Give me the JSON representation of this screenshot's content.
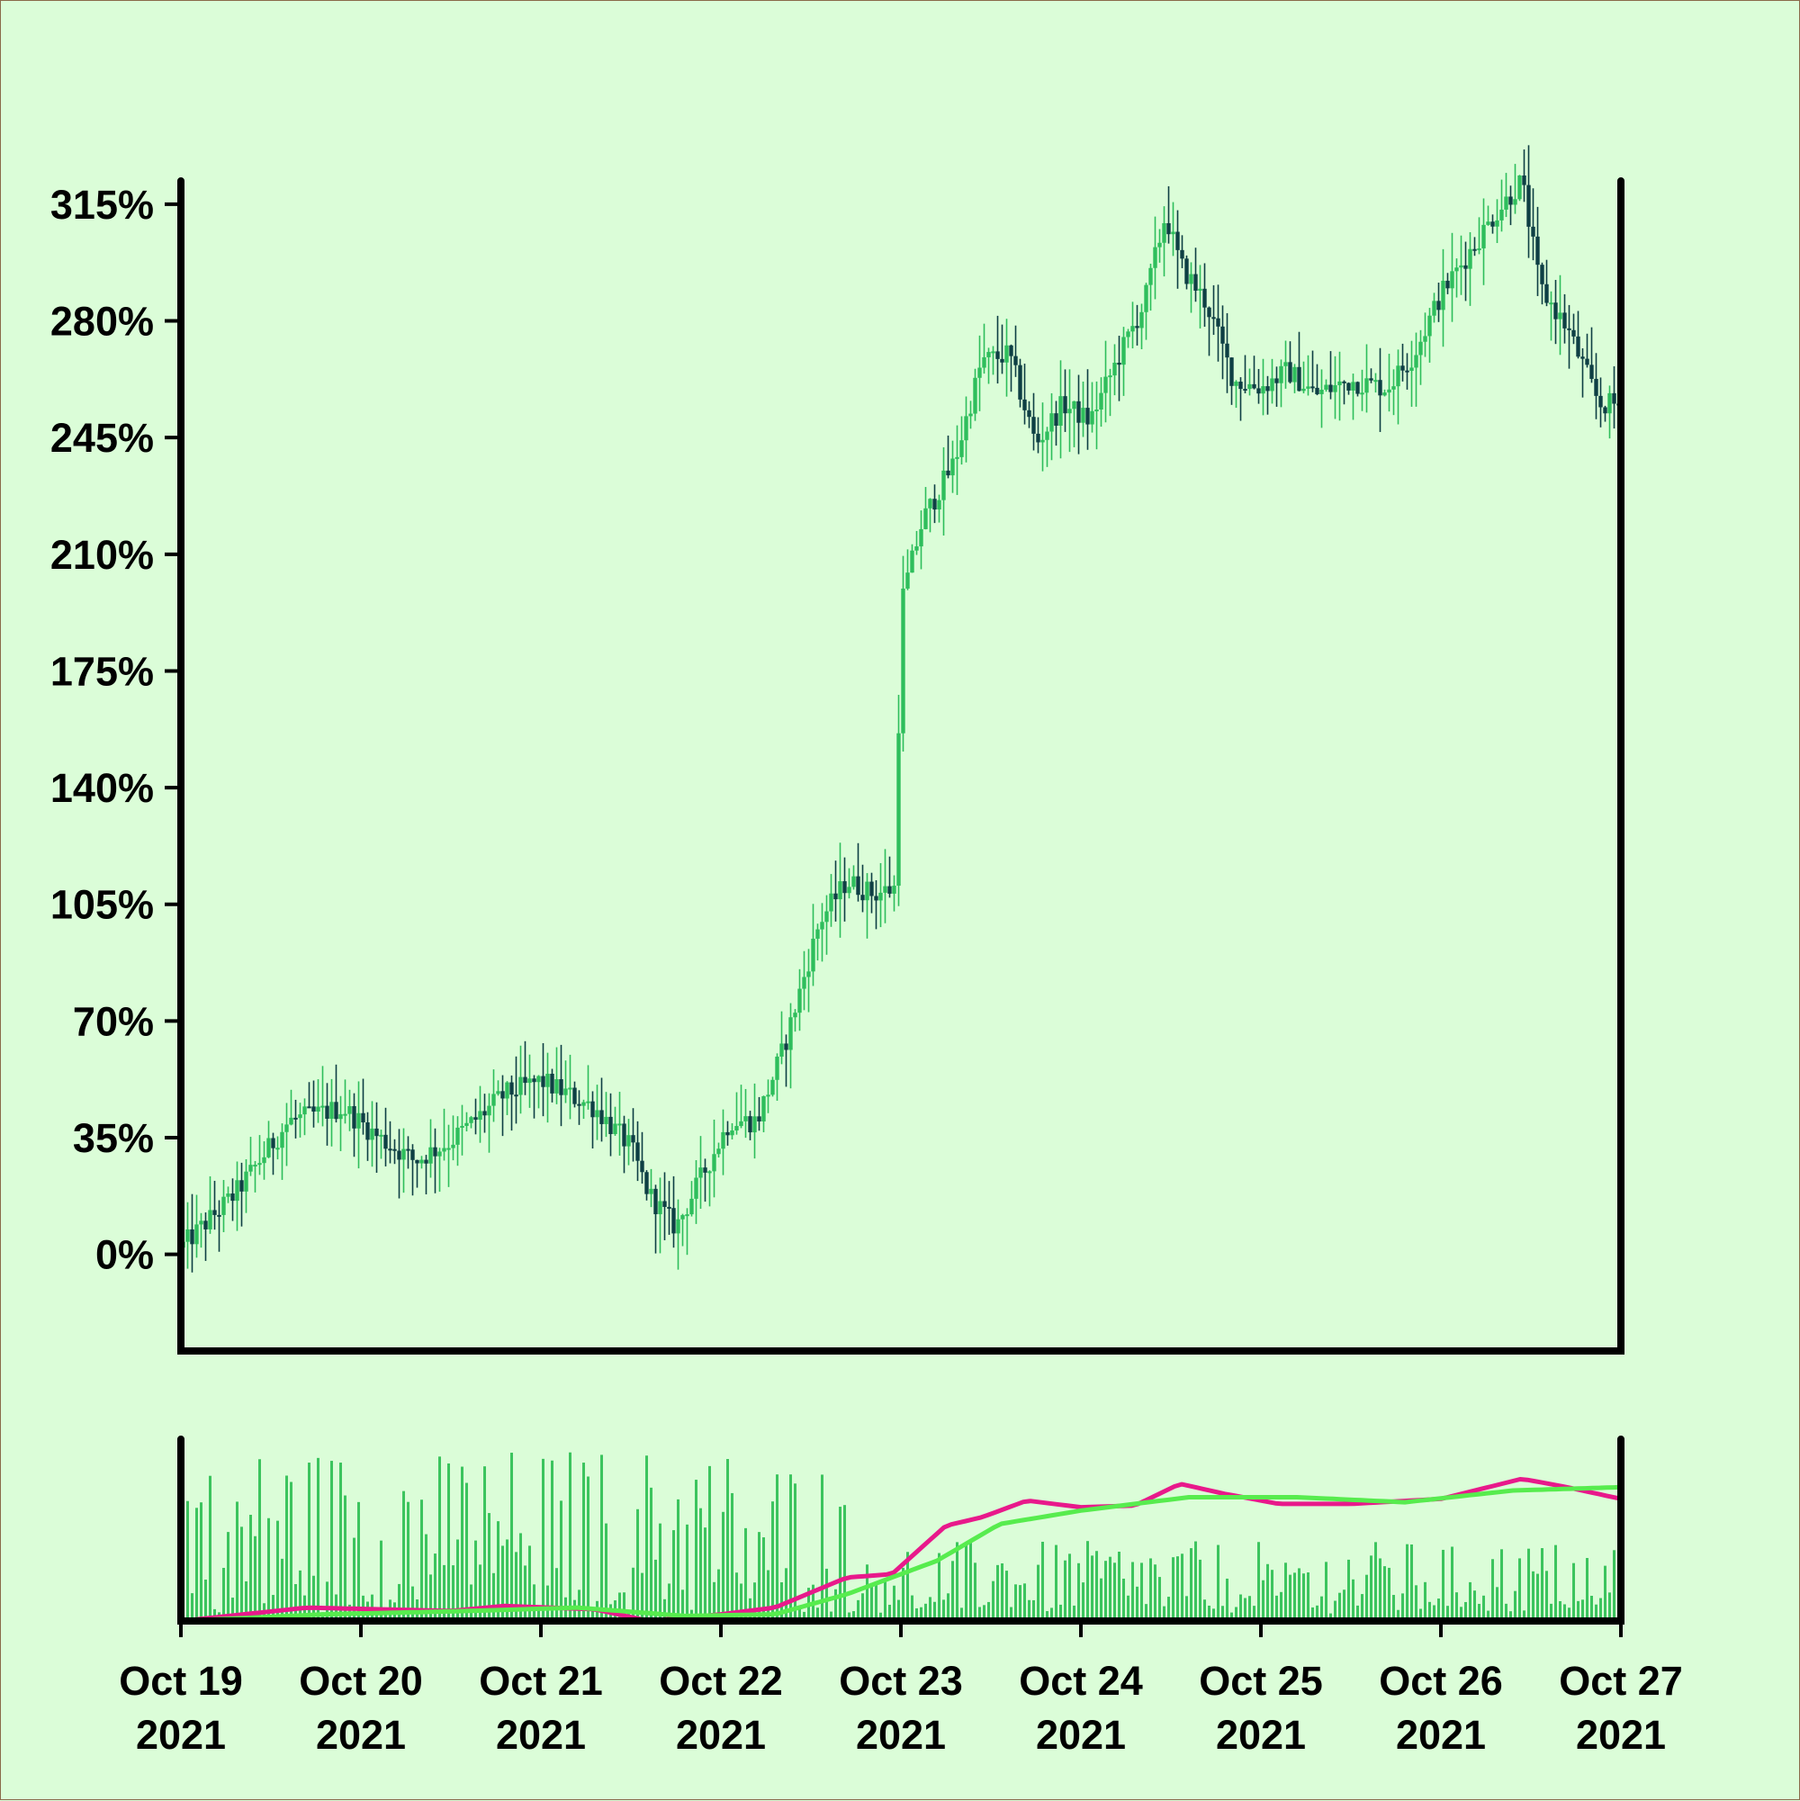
{
  "chart_data": {
    "type": "candlestick",
    "main_panel": {
      "y_tick_labels": [
        "0%",
        "35%",
        "70%",
        "105%",
        "140%",
        "175%",
        "210%",
        "245%",
        "280%",
        "315%"
      ],
      "y_tick_values": [
        0,
        35,
        70,
        105,
        140,
        175,
        210,
        245,
        280,
        315
      ],
      "ylim": [
        -29,
        322
      ],
      "colors": {
        "up": "#2ebe5c",
        "down": "#0e3f44"
      },
      "keypoints": [
        {
          "x": 0.0,
          "y": 2
        },
        {
          "x": 0.3,
          "y": 18
        },
        {
          "x": 0.6,
          "y": 40
        },
        {
          "x": 0.9,
          "y": 44
        },
        {
          "x": 1.1,
          "y": 35
        },
        {
          "x": 1.3,
          "y": 28
        },
        {
          "x": 1.5,
          "y": 34
        },
        {
          "x": 1.8,
          "y": 48
        },
        {
          "x": 2.0,
          "y": 52
        },
        {
          "x": 2.3,
          "y": 44
        },
        {
          "x": 2.5,
          "y": 32
        },
        {
          "x": 2.6,
          "y": 18
        },
        {
          "x": 2.75,
          "y": 8
        },
        {
          "x": 2.9,
          "y": 24
        },
        {
          "x": 3.05,
          "y": 40
        },
        {
          "x": 3.2,
          "y": 40
        },
        {
          "x": 3.35,
          "y": 62
        },
        {
          "x": 3.55,
          "y": 100
        },
        {
          "x": 3.7,
          "y": 112
        },
        {
          "x": 3.85,
          "y": 108
        },
        {
          "x": 3.97,
          "y": 110
        },
        {
          "x": 4.0,
          "y": 195
        },
        {
          "x": 4.12,
          "y": 220
        },
        {
          "x": 4.3,
          "y": 238
        },
        {
          "x": 4.45,
          "y": 268
        },
        {
          "x": 4.6,
          "y": 270
        },
        {
          "x": 4.75,
          "y": 243
        },
        {
          "x": 4.9,
          "y": 255
        },
        {
          "x": 5.05,
          "y": 250
        },
        {
          "x": 5.2,
          "y": 268
        },
        {
          "x": 5.35,
          "y": 285
        },
        {
          "x": 5.47,
          "y": 312
        },
        {
          "x": 5.55,
          "y": 297
        },
        {
          "x": 5.7,
          "y": 285
        },
        {
          "x": 5.85,
          "y": 262
        },
        {
          "x": 6.0,
          "y": 260
        },
        {
          "x": 6.15,
          "y": 265
        },
        {
          "x": 6.3,
          "y": 258
        },
        {
          "x": 6.5,
          "y": 262
        },
        {
          "x": 6.7,
          "y": 260
        },
        {
          "x": 6.85,
          "y": 270
        },
        {
          "x": 7.0,
          "y": 288
        },
        {
          "x": 7.15,
          "y": 300
        },
        {
          "x": 7.3,
          "y": 312
        },
        {
          "x": 7.45,
          "y": 322
        },
        {
          "x": 7.55,
          "y": 290
        },
        {
          "x": 7.7,
          "y": 278
        },
        {
          "x": 7.88,
          "y": 255
        },
        {
          "x": 8.0,
          "y": 255
        }
      ]
    },
    "x_tick_labels": [
      [
        "Oct 19",
        "2021"
      ],
      [
        "Oct 20",
        "2021"
      ],
      [
        "Oct 21",
        "2021"
      ],
      [
        "Oct 22",
        "2021"
      ],
      [
        "Oct 23",
        "2021"
      ],
      [
        "Oct 24",
        "2021"
      ],
      [
        "Oct 25",
        "2021"
      ],
      [
        "Oct 26",
        "2021"
      ],
      [
        "Oct 27",
        "2021"
      ]
    ],
    "x_range_days": [
      0,
      8
    ],
    "volume_panel": {
      "bar_color": "#3cc45e",
      "moving_averages": [
        {
          "color": "#e8198b",
          "shape": "fast"
        },
        {
          "color": "#57ec4e",
          "shape": "slow"
        }
      ],
      "ma_keypoints_fast": [
        {
          "x": 0.0,
          "y": 0.0
        },
        {
          "x": 0.7,
          "y": 0.08
        },
        {
          "x": 1.5,
          "y": 0.06
        },
        {
          "x": 1.8,
          "y": 0.09
        },
        {
          "x": 2.3,
          "y": 0.07
        },
        {
          "x": 2.6,
          "y": 0.0
        },
        {
          "x": 3.0,
          "y": 0.04
        },
        {
          "x": 3.3,
          "y": 0.08
        },
        {
          "x": 3.7,
          "y": 0.26
        },
        {
          "x": 3.95,
          "y": 0.28
        },
        {
          "x": 4.25,
          "y": 0.57
        },
        {
          "x": 4.45,
          "y": 0.62
        },
        {
          "x": 4.7,
          "y": 0.72
        },
        {
          "x": 5.0,
          "y": 0.68
        },
        {
          "x": 5.3,
          "y": 0.69
        },
        {
          "x": 5.55,
          "y": 0.82
        },
        {
          "x": 5.8,
          "y": 0.76
        },
        {
          "x": 6.1,
          "y": 0.7
        },
        {
          "x": 6.5,
          "y": 0.7
        },
        {
          "x": 7.0,
          "y": 0.73
        },
        {
          "x": 7.45,
          "y": 0.85
        },
        {
          "x": 7.7,
          "y": 0.8
        },
        {
          "x": 8.0,
          "y": 0.73
        }
      ],
      "ma_keypoints_slow": [
        {
          "x": 0.0,
          "y": 0.0
        },
        {
          "x": 0.8,
          "y": 0.04
        },
        {
          "x": 1.6,
          "y": 0.06
        },
        {
          "x": 2.2,
          "y": 0.08
        },
        {
          "x": 2.8,
          "y": 0.03
        },
        {
          "x": 3.3,
          "y": 0.04
        },
        {
          "x": 3.7,
          "y": 0.16
        },
        {
          "x": 4.2,
          "y": 0.36
        },
        {
          "x": 4.55,
          "y": 0.58
        },
        {
          "x": 5.0,
          "y": 0.66
        },
        {
          "x": 5.6,
          "y": 0.74
        },
        {
          "x": 6.2,
          "y": 0.74
        },
        {
          "x": 6.8,
          "y": 0.71
        },
        {
          "x": 7.4,
          "y": 0.78
        },
        {
          "x": 8.0,
          "y": 0.8
        }
      ]
    }
  }
}
